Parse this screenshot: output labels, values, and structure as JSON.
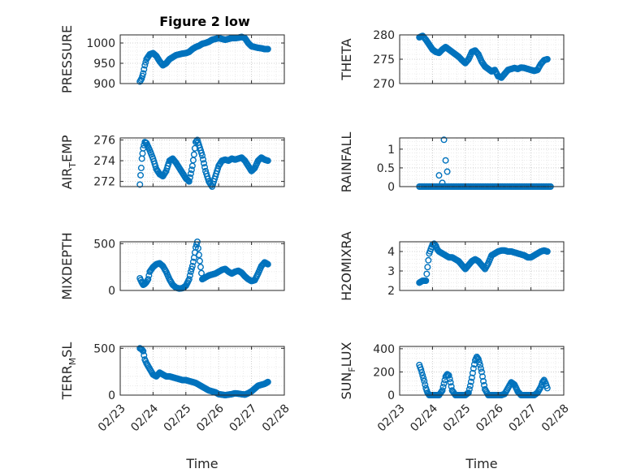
{
  "figure": {
    "title": "Figure 2 low",
    "marker_color": "#0072bd"
  },
  "chart_data": [
    {
      "type": "scatter",
      "ylabel": "PRESSURE",
      "ylabel_sub": "",
      "title": "Figure 2 low",
      "xlim": [
        "02/23",
        "02/28"
      ],
      "ylim": [
        900,
        1020
      ],
      "yticks": [
        900,
        950,
        1000
      ],
      "xticks": [],
      "xlabel": "",
      "x": [
        23.6,
        23.65,
        23.7,
        23.75,
        23.8,
        23.9,
        24.0,
        24.1,
        24.2,
        24.3,
        24.4,
        24.5,
        24.6,
        24.7,
        24.8,
        24.9,
        25.0,
        25.1,
        25.2,
        25.3,
        25.4,
        25.5,
        25.6,
        25.7,
        25.8,
        25.9,
        26.0,
        26.1,
        26.2,
        26.3,
        26.4,
        26.5,
        26.6,
        26.7,
        26.8,
        26.9,
        27.0,
        27.1,
        27.2,
        27.3,
        27.4,
        27.5
      ],
      "y": [
        905,
        912,
        925,
        945,
        960,
        972,
        975,
        968,
        955,
        945,
        950,
        960,
        965,
        970,
        972,
        974,
        975,
        978,
        985,
        990,
        993,
        998,
        1000,
        1003,
        1008,
        1010,
        1012,
        1010,
        1008,
        1010,
        1012,
        1012,
        1013,
        1015,
        1012,
        1000,
        992,
        990,
        988,
        987,
        985,
        985
      ]
    },
    {
      "type": "scatter",
      "ylabel": "THETA",
      "ylabel_sub": "",
      "xlim": [
        "02/23",
        "02/28"
      ],
      "ylim": [
        270,
        280
      ],
      "yticks": [
        270,
        275,
        280
      ],
      "xticks": [],
      "xlabel": "",
      "x": [
        23.6,
        23.7,
        23.8,
        23.9,
        24.0,
        24.1,
        24.2,
        24.3,
        24.4,
        24.5,
        24.6,
        24.7,
        24.8,
        24.9,
        25.0,
        25.1,
        25.2,
        25.3,
        25.4,
        25.5,
        25.6,
        25.7,
        25.8,
        25.9,
        26.0,
        26.1,
        26.2,
        26.3,
        26.4,
        26.5,
        26.6,
        26.7,
        26.8,
        26.9,
        27.0,
        27.1,
        27.2,
        27.3,
        27.4,
        27.5
      ],
      "y": [
        279.5,
        279.8,
        279.0,
        278.0,
        277.0,
        276.5,
        276.3,
        277.0,
        277.5,
        277.0,
        276.5,
        276.0,
        275.5,
        274.8,
        274.2,
        275.0,
        276.5,
        276.8,
        276.0,
        274.5,
        273.5,
        273.0,
        272.5,
        272.8,
        271.5,
        271.2,
        272.0,
        272.8,
        273.0,
        273.2,
        273.0,
        273.3,
        273.2,
        273.0,
        272.8,
        272.6,
        272.8,
        274.0,
        274.8,
        275.0
      ]
    },
    {
      "type": "scatter",
      "ylabel": "AIR",
      "ylabel_sub": "T",
      "ylabel_rest": "EMP",
      "xlim": [
        "02/23",
        "02/28"
      ],
      "ylim": [
        271.5,
        276.2
      ],
      "yticks": [
        272,
        274,
        276
      ],
      "xticks": [],
      "xlabel": "",
      "x": [
        23.6,
        23.62,
        23.64,
        23.66,
        23.7,
        23.75,
        23.8,
        23.9,
        24.0,
        24.1,
        24.2,
        24.3,
        24.4,
        24.5,
        24.6,
        24.7,
        24.8,
        24.9,
        25.0,
        25.1,
        25.2,
        25.25,
        25.3,
        25.35,
        25.4,
        25.5,
        25.6,
        25.7,
        25.8,
        25.9,
        26.0,
        26.1,
        26.2,
        26.3,
        26.4,
        26.5,
        26.6,
        26.7,
        26.8,
        26.9,
        27.0,
        27.1,
        27.2,
        27.3,
        27.4,
        27.5
      ],
      "y": [
        271.7,
        272.6,
        273.3,
        274.2,
        275.2,
        275.8,
        275.7,
        275.0,
        274.2,
        273.2,
        272.7,
        272.5,
        273.0,
        274.0,
        274.2,
        273.8,
        273.3,
        272.8,
        272.3,
        272.0,
        273.5,
        274.6,
        275.8,
        276.0,
        275.5,
        274.5,
        273.0,
        272.0,
        271.5,
        272.5,
        273.5,
        274.0,
        274.1,
        274.0,
        274.2,
        274.1,
        274.2,
        274.3,
        274.0,
        273.5,
        273.0,
        273.3,
        274.0,
        274.3,
        274.1,
        274.0
      ]
    },
    {
      "type": "scatter",
      "ylabel": "RAINFALL",
      "ylabel_sub": "",
      "xlim": [
        "02/23",
        "02/28"
      ],
      "ylim": [
        0,
        1.3
      ],
      "yticks": [
        0,
        0.5,
        1
      ],
      "ytick_labels": [
        "0",
        "0.5",
        "1"
      ],
      "xticks": [],
      "xlabel": "",
      "x_start": 23.6,
      "x_end": 27.6,
      "x_step": 0.04,
      "peaks": [
        {
          "x": 24.2,
          "y": 0.3
        },
        {
          "x": 24.35,
          "y": 1.25
        },
        {
          "x": 24.4,
          "y": 0.7
        },
        {
          "x": 24.45,
          "y": 0.4
        },
        {
          "x": 24.3,
          "y": 0.1
        }
      ]
    },
    {
      "type": "scatter",
      "ylabel": "MIXDEPTH",
      "ylabel_sub": "",
      "xlim": [
        "02/23",
        "02/28"
      ],
      "ylim": [
        0,
        520
      ],
      "yticks": [
        0,
        500
      ],
      "xticks": [],
      "xlabel": "",
      "x": [
        23.6,
        23.65,
        23.7,
        23.75,
        23.8,
        23.85,
        23.9,
        24.0,
        24.1,
        24.2,
        24.3,
        24.4,
        24.5,
        24.6,
        24.7,
        24.8,
        24.9,
        25.0,
        25.1,
        25.15,
        25.2,
        25.25,
        25.3,
        25.35,
        25.4,
        25.45,
        25.5,
        25.6,
        25.7,
        25.8,
        25.9,
        26.0,
        26.1,
        26.2,
        26.3,
        26.4,
        26.5,
        26.6,
        26.7,
        26.8,
        26.9,
        27.0,
        27.1,
        27.2,
        27.3,
        27.4,
        27.5
      ],
      "y": [
        130,
        90,
        60,
        70,
        90,
        120,
        200,
        250,
        280,
        290,
        260,
        200,
        120,
        60,
        30,
        20,
        25,
        50,
        120,
        200,
        260,
        350,
        460,
        520,
        380,
        250,
        120,
        140,
        160,
        170,
        180,
        200,
        220,
        230,
        200,
        180,
        200,
        210,
        190,
        150,
        120,
        100,
        110,
        180,
        260,
        300,
        280
      ]
    },
    {
      "type": "scatter",
      "ylabel": "H2OMIXRA",
      "ylabel_sub": "",
      "xlim": [
        "02/23",
        "02/28"
      ],
      "ylim": [
        2,
        4.5
      ],
      "yticks": [
        2,
        3,
        4
      ],
      "xticks": [],
      "xlabel": "",
      "x": [
        23.6,
        23.65,
        23.7,
        23.75,
        23.8,
        23.85,
        23.9,
        24.0,
        24.05,
        24.1,
        24.15,
        24.2,
        24.3,
        24.4,
        24.5,
        24.6,
        24.7,
        24.8,
        24.9,
        25.0,
        25.1,
        25.2,
        25.3,
        25.4,
        25.5,
        25.6,
        25.7,
        25.8,
        25.9,
        26.0,
        26.1,
        26.2,
        26.3,
        26.4,
        26.5,
        26.6,
        26.7,
        26.8,
        26.9,
        27.0,
        27.1,
        27.2,
        27.3,
        27.4,
        27.5
      ],
      "y": [
        2.4,
        2.45,
        2.5,
        2.5,
        2.5,
        3.2,
        3.9,
        4.35,
        4.4,
        4.3,
        4.1,
        4.0,
        3.9,
        3.8,
        3.7,
        3.7,
        3.6,
        3.5,
        3.3,
        3.1,
        3.3,
        3.5,
        3.6,
        3.5,
        3.3,
        3.1,
        3.4,
        3.8,
        3.9,
        4.0,
        4.05,
        4.05,
        4.0,
        4.0,
        3.95,
        3.9,
        3.85,
        3.8,
        3.7,
        3.7,
        3.8,
        3.9,
        4.0,
        4.05,
        4.0
      ]
    },
    {
      "type": "scatter",
      "ylabel": "TERR",
      "ylabel_sub": "M",
      "ylabel_rest": "SL",
      "xlim": [
        "02/23",
        "02/28"
      ],
      "ylim": [
        0,
        520
      ],
      "yticks": [
        0,
        500
      ],
      "xticks": [
        "02/23",
        "02/24",
        "02/25",
        "02/26",
        "02/27",
        "02/28"
      ],
      "xlabel": "Time",
      "x": [
        23.6,
        23.65,
        23.7,
        23.75,
        23.8,
        23.9,
        24.0,
        24.1,
        24.2,
        24.3,
        24.4,
        24.5,
        24.6,
        24.7,
        24.8,
        24.9,
        25.0,
        25.1,
        25.2,
        25.3,
        25.4,
        25.5,
        25.6,
        25.7,
        25.8,
        25.9,
        26.0,
        26.1,
        26.2,
        26.3,
        26.4,
        26.5,
        26.6,
        26.7,
        26.8,
        26.9,
        27.0,
        27.1,
        27.2,
        27.3,
        27.4,
        27.5
      ],
      "y": [
        500,
        490,
        470,
        380,
        340,
        280,
        220,
        200,
        240,
        220,
        200,
        200,
        190,
        180,
        170,
        160,
        160,
        150,
        140,
        130,
        110,
        90,
        70,
        50,
        40,
        30,
        10,
        5,
        0,
        5,
        10,
        20,
        15,
        10,
        5,
        20,
        40,
        70,
        100,
        110,
        120,
        140
      ]
    },
    {
      "type": "scatter",
      "ylabel": "SUN",
      "ylabel_sub": "F",
      "ylabel_rest": "LUX",
      "xlim": [
        "02/23",
        "02/28"
      ],
      "ylim": [
        0,
        420
      ],
      "yticks": [
        0,
        200,
        400
      ],
      "xticks": [
        "02/23",
        "02/24",
        "02/25",
        "02/26",
        "02/27",
        "02/28"
      ],
      "xlabel": "Time",
      "x": [
        23.6,
        23.65,
        23.7,
        23.75,
        23.8,
        23.85,
        23.9,
        23.95,
        24.0,
        24.1,
        24.2,
        24.3,
        24.35,
        24.4,
        24.45,
        24.5,
        24.55,
        24.6,
        24.7,
        24.8,
        24.9,
        25.0,
        25.1,
        25.15,
        25.2,
        25.25,
        25.3,
        25.35,
        25.4,
        25.45,
        25.5,
        25.55,
        25.6,
        25.7,
        25.8,
        25.9,
        26.0,
        26.1,
        26.2,
        26.3,
        26.4,
        26.5,
        26.6,
        26.7,
        26.8,
        26.9,
        27.0,
        27.1,
        27.2,
        27.3,
        27.35,
        27.4,
        27.45,
        27.5
      ],
      "y": [
        260,
        220,
        170,
        120,
        60,
        20,
        0,
        0,
        0,
        0,
        0,
        40,
        100,
        160,
        180,
        170,
        110,
        40,
        0,
        0,
        0,
        0,
        20,
        80,
        150,
        230,
        300,
        330,
        310,
        260,
        200,
        120,
        50,
        0,
        0,
        0,
        0,
        0,
        10,
        60,
        110,
        90,
        30,
        0,
        0,
        0,
        0,
        0,
        20,
        70,
        110,
        130,
        100,
        60
      ]
    }
  ]
}
